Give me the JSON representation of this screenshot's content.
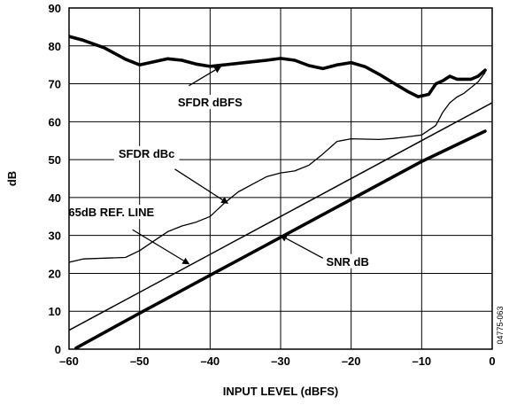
{
  "chart_data": {
    "type": "line",
    "xlabel": "INPUT LEVEL (dBFS)",
    "ylabel": "dB",
    "xlim": [
      -60,
      0
    ],
    "ylim": [
      0,
      90
    ],
    "x_ticks": [
      "–60",
      "–50",
      "–40",
      "–30",
      "–20",
      "–10",
      "0"
    ],
    "y_ticks": [
      "0",
      "10",
      "20",
      "30",
      "40",
      "50",
      "60",
      "70",
      "80",
      "90"
    ],
    "grid": true,
    "side_label": "04775-063",
    "series": [
      {
        "name": "SFDR dBFS",
        "style": "thick",
        "points": [
          [
            -61,
            83
          ],
          [
            -58,
            81.5
          ],
          [
            -55,
            79.5
          ],
          [
            -52,
            76.5
          ],
          [
            -50,
            75
          ],
          [
            -48,
            75.8
          ],
          [
            -46,
            76.6
          ],
          [
            -44,
            76.2
          ],
          [
            -42,
            75.2
          ],
          [
            -40,
            74.6
          ],
          [
            -38,
            75
          ],
          [
            -35,
            75.6
          ],
          [
            -32,
            76.2
          ],
          [
            -30,
            76.7
          ],
          [
            -28,
            76.2
          ],
          [
            -26,
            74.8
          ],
          [
            -24,
            74
          ],
          [
            -22,
            75
          ],
          [
            -20,
            75.6
          ],
          [
            -18,
            74.5
          ],
          [
            -16,
            72.5
          ],
          [
            -14,
            70.2
          ],
          [
            -12,
            68
          ],
          [
            -10.5,
            66.6
          ],
          [
            -9,
            67.2
          ],
          [
            -8,
            70
          ],
          [
            -7,
            70.8
          ],
          [
            -6,
            72
          ],
          [
            -5,
            71.2
          ],
          [
            -3,
            71.2
          ],
          [
            -2,
            72
          ],
          [
            -1,
            73.6
          ]
        ]
      },
      {
        "name": "SFDR dBc",
        "style": "thin",
        "points": [
          [
            -61,
            22.5
          ],
          [
            -58,
            23.8
          ],
          [
            -55,
            24
          ],
          [
            -52,
            24.2
          ],
          [
            -50,
            26
          ],
          [
            -48,
            28.5
          ],
          [
            -46,
            31
          ],
          [
            -44,
            32.5
          ],
          [
            -42,
            33.5
          ],
          [
            -40,
            35
          ],
          [
            -38,
            38.5
          ],
          [
            -36,
            41.5
          ],
          [
            -34,
            43.5
          ],
          [
            -32,
            45.5
          ],
          [
            -30,
            46.5
          ],
          [
            -28,
            47
          ],
          [
            -26,
            48.5
          ],
          [
            -24,
            51.5
          ],
          [
            -22,
            54.8
          ],
          [
            -20,
            55.5
          ],
          [
            -18,
            55.4
          ],
          [
            -16,
            55.3
          ],
          [
            -14,
            55.6
          ],
          [
            -12,
            56
          ],
          [
            -10,
            56.5
          ],
          [
            -8,
            59
          ],
          [
            -7,
            62.5
          ],
          [
            -6,
            65
          ],
          [
            -5,
            66.5
          ],
          [
            -4,
            67.5
          ],
          [
            -2,
            70.5
          ],
          [
            -1,
            73
          ]
        ]
      },
      {
        "name": "65dB REF. LINE",
        "style": "medium",
        "points": [
          [
            -61,
            4
          ],
          [
            0,
            65
          ]
        ]
      },
      {
        "name": "SNR dB",
        "style": "thick",
        "points": [
          [
            -59,
            0.3
          ],
          [
            -50,
            9.5
          ],
          [
            -40,
            19.5
          ],
          [
            -30,
            29.5
          ],
          [
            -20,
            39.5
          ],
          [
            -10,
            49.5
          ],
          [
            -1,
            57.5
          ]
        ]
      }
    ],
    "annotations": [
      {
        "text": "SFDR dBFS",
        "label_at": [
          -40,
          64.5
        ],
        "arrow_from": [
          -43,
          69.5
        ],
        "arrow_to": [
          -38.5,
          74.5
        ]
      },
      {
        "text": "SFDR dBc",
        "label_at": [
          -49,
          51
        ],
        "arrow_from": [
          -45,
          47.5
        ],
        "arrow_to": [
          -37.5,
          38.5
        ]
      },
      {
        "text": "65dB REF. LINE",
        "label_at": [
          -54,
          35.5
        ],
        "arrow_from": [
          -51,
          31.5
        ],
        "arrow_to": [
          -43,
          22.5
        ]
      },
      {
        "text": "SNR dB",
        "label_at": [
          -20.5,
          22.5
        ],
        "arrow_from": [
          -24,
          24
        ],
        "arrow_to": [
          -30,
          30
        ]
      }
    ]
  }
}
